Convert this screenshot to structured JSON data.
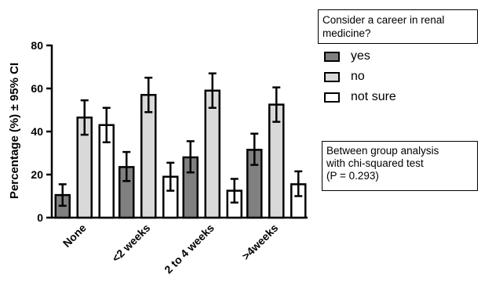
{
  "chart_data": {
    "type": "bar",
    "title": "",
    "xlabel": "",
    "ylabel": "Percentage (%) ± 95% CI",
    "ylim": [
      0,
      80
    ],
    "yticks": [
      0,
      20,
      40,
      60,
      80
    ],
    "categories": [
      "None",
      "<2 weeks",
      "2 to 4 weeks",
      ">4weeks"
    ],
    "legend_title": "Consider a career in renal medicine?",
    "legend_placement": "top-right",
    "grid": false,
    "series": [
      {
        "name": "yes",
        "color": "#808080",
        "values": [
          10.5,
          23.5,
          28,
          31.5
        ],
        "ci_low": [
          5.5,
          17,
          21,
          24.5
        ],
        "ci_high": [
          15.5,
          30.5,
          35.5,
          39
        ]
      },
      {
        "name": "no",
        "color": "#d9d9d9",
        "values": [
          46.5,
          57,
          59,
          52.5
        ],
        "ci_low": [
          38.5,
          49,
          51,
          44.5
        ],
        "ci_high": [
          54.5,
          65,
          67,
          60.5
        ]
      },
      {
        "name": "not sure",
        "color": "#ffffff",
        "values": [
          43,
          19,
          12.5,
          15.5
        ],
        "ci_low": [
          35,
          12.5,
          7,
          10
        ],
        "ci_high": [
          51,
          25.5,
          18,
          21.5
        ]
      }
    ],
    "annotation": {
      "lines": [
        "Between group analysis",
        "with chi-squared test",
        "(P = 0.293)"
      ]
    }
  }
}
